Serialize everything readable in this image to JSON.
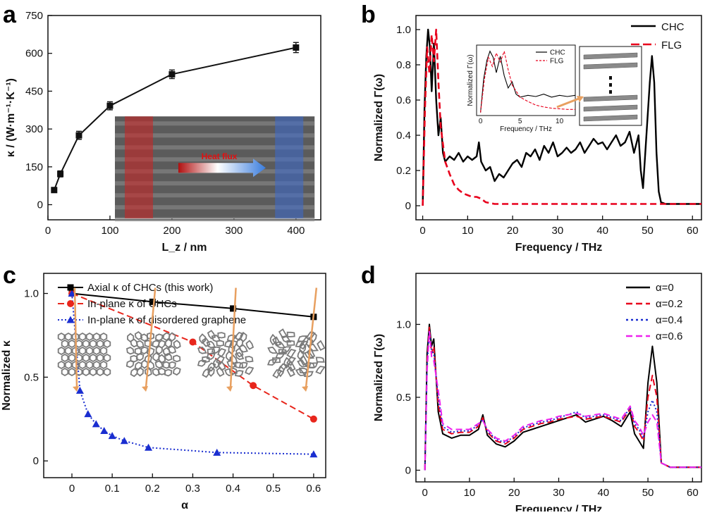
{
  "panels": [
    {
      "label": "a",
      "chart_data": {
        "type": "line",
        "xlabel": "L_z / nm",
        "ylabel": "κ / (W·m⁻¹·K⁻¹)",
        "xlim": [
          0,
          440
        ],
        "ylim": [
          -60,
          750
        ],
        "xticks": [
          "0",
          "100",
          "200",
          "300",
          "400"
        ],
        "yticks": [
          "0",
          "150",
          "300",
          "450",
          "600",
          "750"
        ],
        "series": [
          {
            "x": [
              10,
              20,
              50,
              100,
              200,
              400
            ],
            "y": [
              58,
              122,
              275,
              392,
              517,
              623
            ],
            "err": [
              6,
              12,
              16,
              16,
              17,
              20
            ],
            "color": "#111111",
            "marker": "square"
          }
        ],
        "inset_annotation": "Heat flux"
      }
    },
    {
      "label": "b",
      "chart_data": {
        "type": "line",
        "xlabel": "Frequency / THz",
        "ylabel": "Normalized Γ(ω)",
        "xlim": [
          -1.5,
          62
        ],
        "ylim": [
          -0.08,
          1.08
        ],
        "xticks": [
          "0",
          "10",
          "20",
          "30",
          "40",
          "50",
          "60"
        ],
        "yticks": [
          "0",
          "0.2",
          "0.4",
          "0.6",
          "0.8",
          "1.0"
        ],
        "legend": "top-right",
        "series": [
          {
            "name": "CHC",
            "color": "#000000",
            "style": "solid",
            "x": [
              0,
              0.4,
              0.8,
              1.2,
              1.6,
              2.0,
              2.5,
              3,
              3.5,
              4,
              4.5,
              5,
              6,
              7,
              8,
              9,
              10,
              11,
              12,
              12.5,
              13,
              14,
              15,
              16,
              17,
              18,
              19,
              20,
              21,
              22,
              23,
              24,
              25,
              26,
              27,
              28,
              29,
              30,
              31,
              32,
              33,
              34,
              35,
              36,
              37,
              38,
              39,
              40,
              41,
              42,
              43,
              44,
              45,
              46,
              47,
              48,
              48.5,
              49,
              49.5,
              50,
              50.5,
              51,
              51.5,
              52,
              52.5,
              53,
              54,
              56,
              58,
              60,
              62
            ],
            "y": [
              0,
              0.55,
              0.85,
              1.0,
              0.9,
              0.65,
              0.92,
              0.6,
              0.4,
              0.5,
              0.3,
              0.25,
              0.28,
              0.26,
              0.3,
              0.25,
              0.28,
              0.26,
              0.28,
              0.36,
              0.25,
              0.2,
              0.22,
              0.14,
              0.18,
              0.16,
              0.2,
              0.24,
              0.26,
              0.22,
              0.3,
              0.28,
              0.32,
              0.26,
              0.34,
              0.3,
              0.36,
              0.28,
              0.3,
              0.33,
              0.3,
              0.32,
              0.36,
              0.3,
              0.34,
              0.38,
              0.35,
              0.36,
              0.32,
              0.36,
              0.4,
              0.34,
              0.36,
              0.42,
              0.3,
              0.4,
              0.2,
              0.1,
              0.3,
              0.5,
              0.7,
              0.85,
              0.7,
              0.3,
              0.08,
              0.02,
              0.01,
              0.01,
              0.01,
              0.01,
              0.01
            ]
          },
          {
            "name": "FLG",
            "color": "#e8001c",
            "style": "dashed",
            "x": [
              0,
              0.5,
              1,
              1.5,
              2,
              2.5,
              3,
              3.5,
              4,
              5,
              6,
              7,
              8,
              9,
              10,
              11,
              12,
              13,
              14,
              16,
              20,
              30,
              40,
              50,
              52,
              55,
              62
            ],
            "y": [
              0,
              0.55,
              0.9,
              0.75,
              0.97,
              0.82,
              1.0,
              0.7,
              0.45,
              0.25,
              0.18,
              0.12,
              0.09,
              0.07,
              0.06,
              0.05,
              0.05,
              0.04,
              0.02,
              0.01,
              0.01,
              0.01,
              0.01,
              0.01,
              0.01,
              0.01,
              0.01
            ]
          }
        ],
        "inset": {
          "xlabel": "Frequency / THz",
          "ylabel": "Normalized Γ(ω)",
          "xticks": [
            "0",
            "5",
            "10"
          ],
          "legend": [
            "CHC",
            "FLG"
          ]
        }
      }
    },
    {
      "label": "c",
      "chart_data": {
        "type": "line",
        "xlabel": "α",
        "ylabel": "Normalized κ",
        "xlim": [
          -0.07,
          0.63
        ],
        "ylim": [
          -0.1,
          1.12
        ],
        "xticks": [
          "0",
          "0.1",
          "0.2",
          "0.3",
          "0.4",
          "0.5",
          "0.6"
        ],
        "yticks": [
          "0",
          "0.5",
          "1.0"
        ],
        "legend": "top-left",
        "series": [
          {
            "name": "Axial κ of CHCs (this work)",
            "color": "#000000",
            "style": "solid",
            "marker": "square",
            "x": [
              0,
              0.2,
              0.4,
              0.6
            ],
            "y": [
              1.0,
              0.95,
              0.91,
              0.86
            ]
          },
          {
            "name": "In-plane κ of CHCs",
            "color": "#e8261c",
            "style": "dashed",
            "marker": "circle",
            "x": [
              0,
              0.3,
              0.45,
              0.6
            ],
            "y": [
              1.0,
              0.71,
              0.45,
              0.25
            ]
          },
          {
            "name": "In-plane κ of disordered graphene",
            "color": "#1a2ed0",
            "style": "dotted",
            "marker": "triangle",
            "x": [
              0,
              0.02,
              0.04,
              0.06,
              0.08,
              0.1,
              0.13,
              0.19,
              0.36,
              0.6
            ],
            "y": [
              1.0,
              0.42,
              0.28,
              0.22,
              0.18,
              0.15,
              0.12,
              0.08,
              0.05,
              0.04
            ]
          }
        ]
      }
    },
    {
      "label": "d",
      "chart_data": {
        "type": "line",
        "xlabel": "Frequency / THz",
        "ylabel": "Normalized Γ(ω)",
        "xlim": [
          -2,
          62
        ],
        "ylim": [
          -0.08,
          1.35
        ],
        "xticks": [
          "0",
          "10",
          "20",
          "30",
          "40",
          "50",
          "60"
        ],
        "yticks": [
          "0",
          "0.5",
          "1.0"
        ],
        "legend": "top-right",
        "series": [
          {
            "name": "α=0",
            "color": "#000000",
            "style": "solid",
            "x": [
              0,
              0.5,
              1,
              1.5,
              2,
              3,
              4,
              6,
              8,
              10,
              12,
              13,
              14,
              16,
              18,
              20,
              22,
              24,
              26,
              28,
              30,
              32,
              34,
              36,
              38,
              40,
              42,
              44,
              46,
              47,
              48,
              49,
              50,
              51,
              52,
              53,
              55,
              58,
              62
            ],
            "y": [
              0,
              0.8,
              1.0,
              0.85,
              0.9,
              0.4,
              0.25,
              0.22,
              0.24,
              0.24,
              0.28,
              0.38,
              0.24,
              0.18,
              0.16,
              0.2,
              0.26,
              0.28,
              0.3,
              0.32,
              0.34,
              0.36,
              0.38,
              0.33,
              0.35,
              0.37,
              0.34,
              0.3,
              0.4,
              0.25,
              0.2,
              0.15,
              0.6,
              0.85,
              0.6,
              0.05,
              0.02,
              0.02,
              0.02
            ]
          },
          {
            "name": "α=0.2",
            "color": "#e8001c",
            "style": "dashed",
            "x": [
              0,
              0.5,
              1,
              1.5,
              2,
              3,
              4,
              6,
              8,
              10,
              12,
              13,
              14,
              16,
              18,
              20,
              22,
              24,
              26,
              28,
              30,
              32,
              34,
              36,
              38,
              40,
              42,
              44,
              46,
              47,
              48,
              49,
              50,
              51,
              52,
              53,
              55,
              58,
              62
            ],
            "y": [
              0,
              0.75,
              0.98,
              0.8,
              0.85,
              0.45,
              0.28,
              0.25,
              0.26,
              0.26,
              0.3,
              0.36,
              0.26,
              0.2,
              0.18,
              0.22,
              0.28,
              0.3,
              0.32,
              0.33,
              0.35,
              0.36,
              0.37,
              0.35,
              0.36,
              0.37,
              0.35,
              0.33,
              0.42,
              0.3,
              0.26,
              0.2,
              0.5,
              0.65,
              0.5,
              0.05,
              0.02,
              0.02,
              0.02
            ]
          },
          {
            "name": "α=0.4",
            "color": "#1a2ed0",
            "style": "dotted",
            "x": [
              0,
              0.5,
              1,
              1.5,
              2,
              3,
              4,
              6,
              8,
              10,
              12,
              13,
              14,
              16,
              18,
              20,
              22,
              24,
              26,
              28,
              30,
              32,
              34,
              36,
              38,
              40,
              42,
              44,
              46,
              47,
              48,
              49,
              50,
              51,
              52,
              53,
              55,
              58,
              62
            ],
            "y": [
              0,
              0.7,
              0.96,
              0.82,
              0.8,
              0.5,
              0.3,
              0.26,
              0.27,
              0.27,
              0.31,
              0.35,
              0.27,
              0.21,
              0.19,
              0.23,
              0.29,
              0.31,
              0.33,
              0.34,
              0.36,
              0.38,
              0.4,
              0.36,
              0.37,
              0.38,
              0.36,
              0.34,
              0.43,
              0.32,
              0.28,
              0.22,
              0.4,
              0.48,
              0.4,
              0.05,
              0.02,
              0.02,
              0.02
            ]
          },
          {
            "name": "α=0.6",
            "color": "#ee22ee",
            "style": "dashed",
            "x": [
              0,
              0.5,
              1,
              1.5,
              2,
              3,
              4,
              6,
              8,
              10,
              12,
              13,
              14,
              16,
              18,
              20,
              22,
              24,
              26,
              28,
              30,
              32,
              34,
              36,
              38,
              40,
              42,
              44,
              46,
              47,
              48,
              49,
              50,
              51,
              52,
              53,
              55,
              58,
              62
            ],
            "y": [
              0,
              0.68,
              0.95,
              0.78,
              0.75,
              0.55,
              0.32,
              0.28,
              0.28,
              0.28,
              0.32,
              0.34,
              0.28,
              0.22,
              0.2,
              0.24,
              0.3,
              0.32,
              0.34,
              0.35,
              0.37,
              0.38,
              0.39,
              0.37,
              0.38,
              0.39,
              0.37,
              0.35,
              0.44,
              0.34,
              0.3,
              0.24,
              0.33,
              0.38,
              0.33,
              0.05,
              0.02,
              0.02,
              0.02
            ]
          }
        ]
      }
    }
  ]
}
